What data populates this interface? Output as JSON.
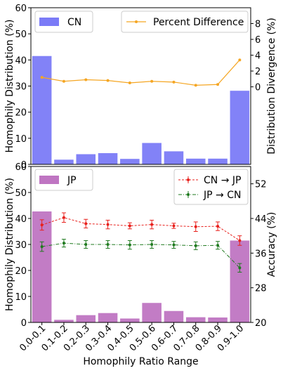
{
  "chart_data": [
    {
      "type": "bar",
      "categories": [
        "0.0-0.1",
        "0.1-0.2",
        "0.2-0.3",
        "0.3-0.4",
        "0.4-0.5",
        "0.5-0.6",
        "0.6-0.7",
        "0.7-0.8",
        "0.8-0.9",
        "0.9-1.0"
      ],
      "series": [
        {
          "name": "CN",
          "values": [
            41.5,
            1.8,
            3.9,
            4.3,
            2.1,
            8.2,
            5.0,
            2.2,
            2.2,
            28.2
          ],
          "color": "#7b7bf7"
        }
      ],
      "ylabel": "Homophily Distribution (%)",
      "ylim": [
        0,
        60
      ],
      "yticks": [
        "0",
        "10",
        "20",
        "30",
        "40",
        "50",
        "60"
      ],
      "secondary": {
        "type": "line",
        "name": "Percent Difference",
        "values": [
          1.2,
          0.7,
          0.9,
          0.8,
          0.5,
          0.7,
          0.6,
          0.2,
          0.3,
          3.4
        ],
        "color": "#f5a623",
        "ylabel": "Distribution Divergence (%)",
        "ylim": [
          -9.8,
          10
        ],
        "yticks": [
          "0",
          "2",
          "4",
          "6",
          "8"
        ]
      },
      "grid": false
    },
    {
      "type": "bar",
      "categories": [
        "0.0-0.1",
        "0.1-0.2",
        "0.2-0.3",
        "0.3-0.4",
        "0.4-0.5",
        "0.5-0.6",
        "0.6-0.7",
        "0.7-0.8",
        "0.8-0.9",
        "0.9-1.0"
      ],
      "series": [
        {
          "name": "JP",
          "values": [
            42.7,
            1.0,
            2.8,
            3.6,
            1.5,
            7.5,
            4.4,
            2.0,
            1.9,
            31.5
          ],
          "color": "#bf75c2"
        }
      ],
      "xlabel": "Homophily Ratio Range",
      "ylabel": "Homophily Distribution (%)",
      "ylim": [
        0,
        60
      ],
      "yticks": [
        "0",
        "10",
        "20",
        "30",
        "40",
        "50",
        "60"
      ],
      "secondary": {
        "type": "line",
        "ylabel": "Accuracy (%)",
        "ylim": [
          20,
          56
        ],
        "yticks": [
          "20",
          "28",
          "36",
          "44",
          "52"
        ],
        "series": [
          {
            "name": "CN → JP",
            "color": "#e8201c",
            "values": [
              42.5,
              44.2,
              42.8,
              42.6,
              42.3,
              42.6,
              42.3,
              42.1,
              42.2,
              38.9
            ],
            "errors": [
              1.2,
              1.1,
              1.0,
              1.0,
              0.7,
              1.0,
              0.6,
              1.1,
              1.0,
              1.1
            ]
          },
          {
            "name": "JP → CN",
            "color": "#1f7a1f",
            "values": [
              37.5,
              38.3,
              38.0,
              38.0,
              37.9,
              38.0,
              37.9,
              37.7,
              37.8,
              32.6
            ],
            "errors": [
              1.1,
              0.9,
              0.9,
              0.9,
              1.0,
              0.9,
              0.8,
              0.9,
              0.9,
              1.0
            ]
          }
        ]
      },
      "grid": false
    }
  ]
}
